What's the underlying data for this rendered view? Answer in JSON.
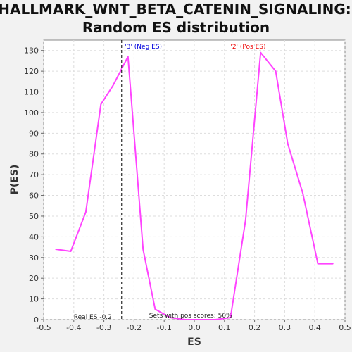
{
  "chart_data": {
    "type": "line",
    "title_line1": "HALLMARK_WNT_BETA_CATENIN_SIGNALING:",
    "title_line2": "Random ES distribution",
    "xlabel": "ES",
    "ylabel": "P(ES)",
    "xlim": [
      -0.5,
      0.5
    ],
    "ylim": [
      0,
      135
    ],
    "xticks": [
      "-0.5",
      "-0.4",
      "-0.3",
      "-0.2",
      "-0.1",
      "0.0",
      "0.1",
      "0.2",
      "0.3",
      "0.4",
      "0.5"
    ],
    "yticks": [
      "0",
      "10",
      "20",
      "30",
      "40",
      "50",
      "60",
      "70",
      "80",
      "90",
      "100",
      "110",
      "120",
      "130"
    ],
    "grid": true,
    "series": [
      {
        "color": "#ff44ff",
        "x": [
          -0.46,
          -0.41,
          -0.36,
          -0.31,
          -0.27,
          -0.22,
          -0.17,
          -0.13,
          -0.08,
          -0.03,
          0.02,
          0.07,
          0.12,
          0.17,
          0.22,
          0.27,
          0.31,
          0.36,
          0.41,
          0.46
        ],
        "y": [
          34,
          33,
          52,
          104,
          113,
          127,
          34,
          5,
          1,
          0,
          0,
          0,
          1,
          48,
          129,
          120,
          85,
          61,
          27,
          27
        ]
      }
    ],
    "real_es": -0.24,
    "real_es_color": "#000000",
    "annotations": {
      "neg_label": "'3' (Neg ES)",
      "neg_color": "#0000dd",
      "pos_label": "'2' (Pos ES)",
      "pos_color": "#ee0000",
      "real_es_label": "Real ES -0.2",
      "pos_scores_label": "Sets with pos scores: 50%"
    }
  }
}
